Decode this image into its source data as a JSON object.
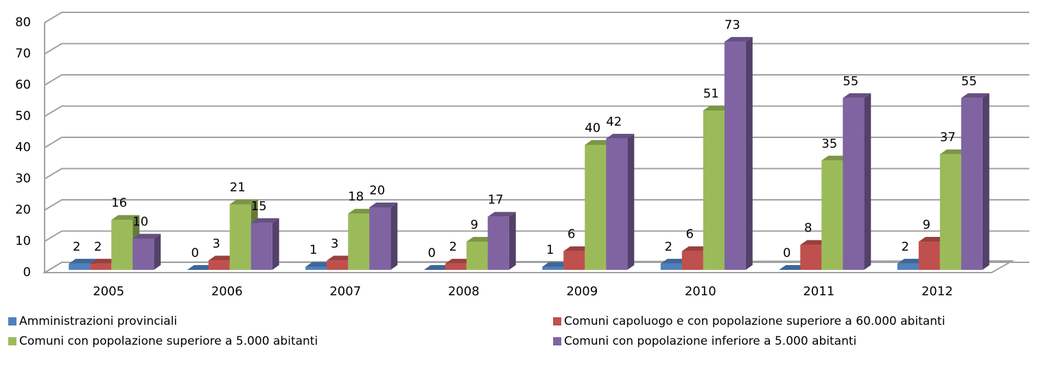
{
  "chart_data": {
    "type": "bar3d",
    "categories": [
      "2005",
      "2006",
      "2007",
      "2008",
      "2009",
      "2010",
      "2011",
      "2012"
    ],
    "series": [
      {
        "name": "Amministrazioni provinciali",
        "color": "#4f81bd",
        "values": [
          2,
          0,
          1,
          0,
          1,
          2,
          0,
          2
        ]
      },
      {
        "name": "Comuni capoluogo e con popolazione superiore a 60.000 abitanti",
        "color": "#c0504d",
        "values": [
          2,
          3,
          3,
          2,
          6,
          6,
          8,
          9
        ]
      },
      {
        "name": "Comuni con popolazione superiore a 5.000 abitanti",
        "color": "#9bbb59",
        "values": [
          16,
          21,
          18,
          9,
          40,
          51,
          35,
          37
        ]
      },
      {
        "name": "Comuni con popolazione inferiore a 5.000 abitanti",
        "color": "#8064a2",
        "values": [
          10,
          15,
          20,
          17,
          42,
          73,
          55,
          55
        ]
      }
    ],
    "ylim": [
      0,
      80
    ],
    "yticks": [
      0,
      10,
      20,
      30,
      40,
      50,
      60,
      70,
      80
    ],
    "grid": true,
    "legend": "bottom"
  }
}
